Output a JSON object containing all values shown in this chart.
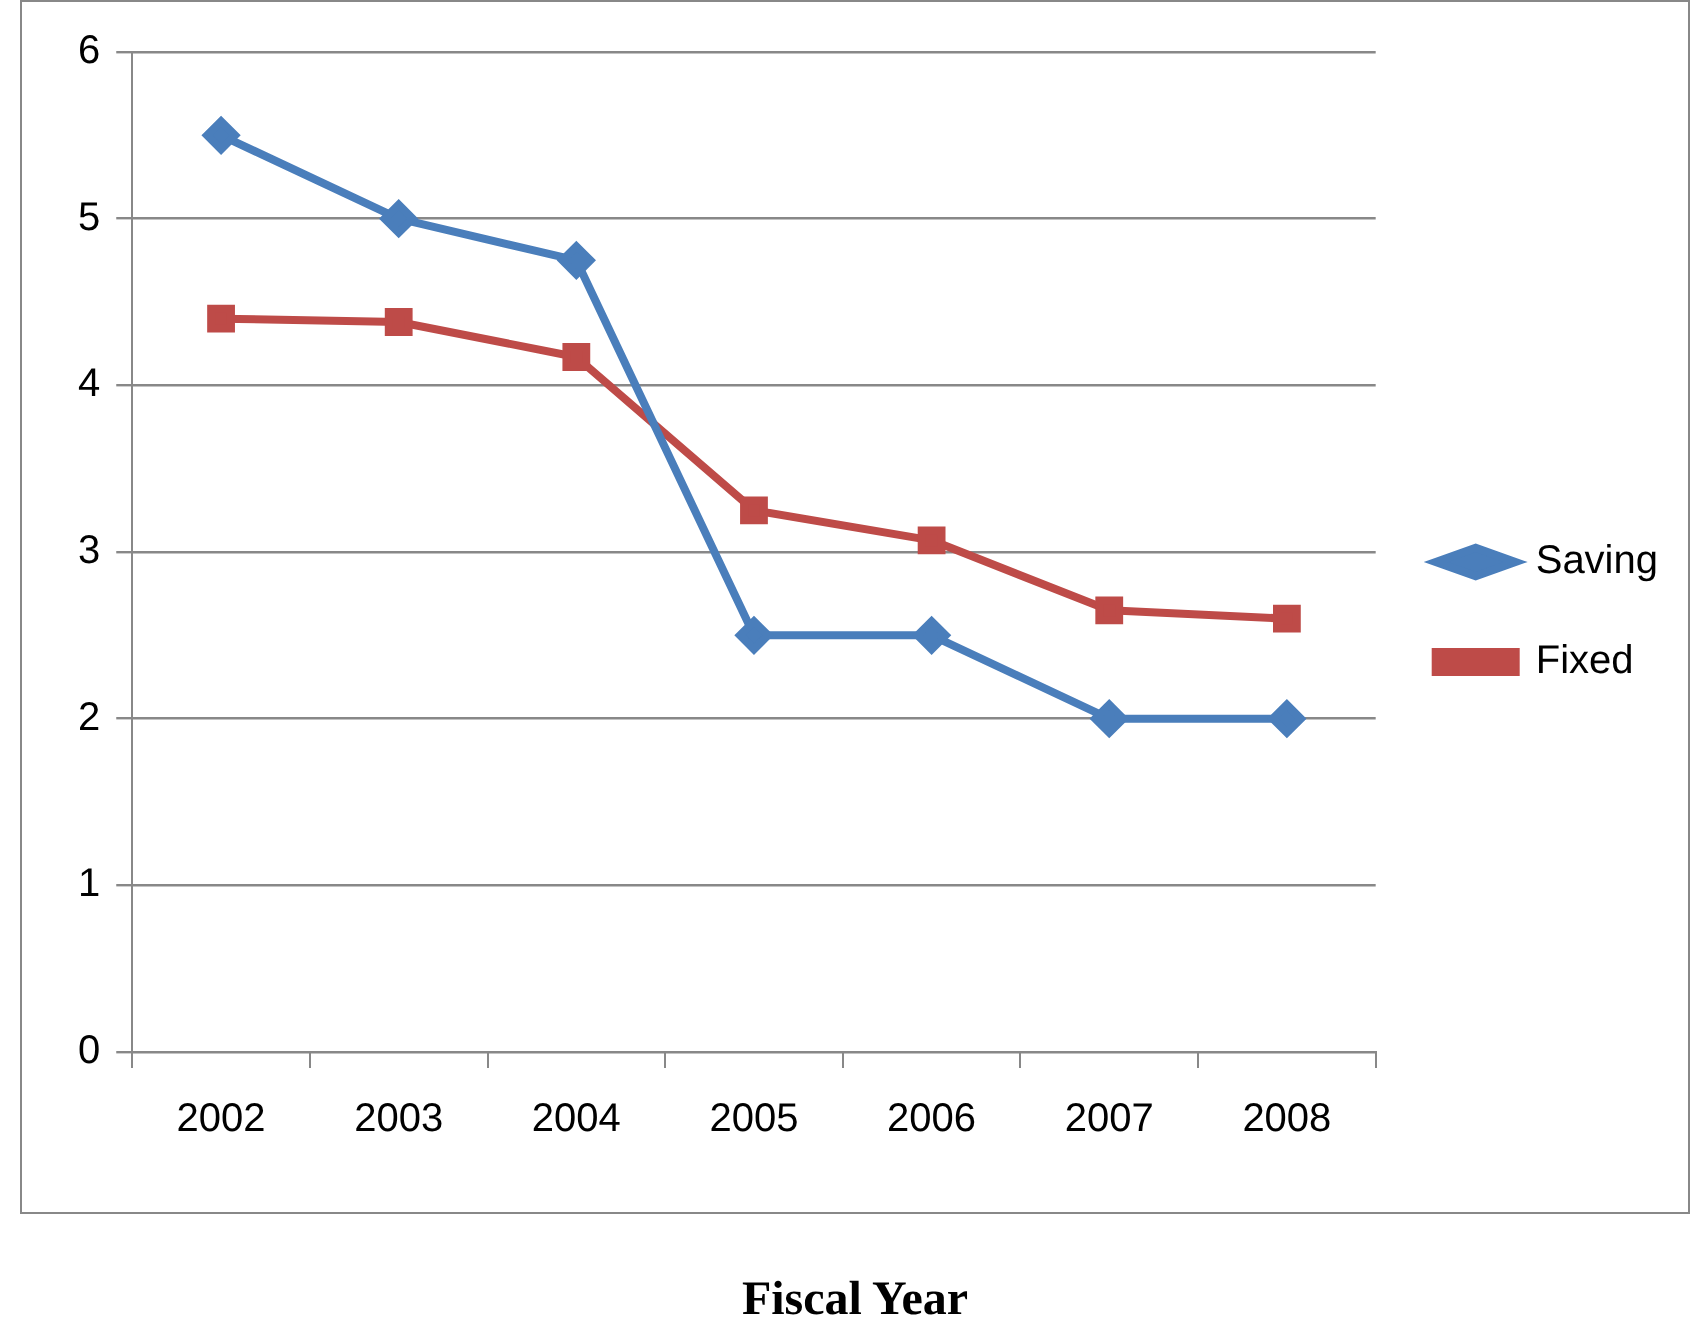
{
  "chart_data": {
    "type": "line",
    "xlabel": "Fiscal Year",
    "categories": [
      "2002",
      "2003",
      "2004",
      "2005",
      "2006",
      "2007",
      "2008"
    ],
    "series": [
      {
        "name": "Saving",
        "color": "#4a7ebb",
        "marker": "diamond",
        "values": [
          5.5,
          5,
          4.75,
          2.5,
          2.5,
          2,
          2
        ]
      },
      {
        "name": "Fixed",
        "color": "#be4b48",
        "marker": "square",
        "values": [
          4.4,
          4.38,
          4.17,
          3.25,
          3.07,
          2.65,
          2.6
        ]
      }
    ],
    "ylim": [
      0,
      6
    ],
    "yticks": [
      0,
      1,
      2,
      3,
      4,
      5,
      6
    ],
    "grid": "y",
    "legend": "right",
    "line_style": "solid"
  }
}
